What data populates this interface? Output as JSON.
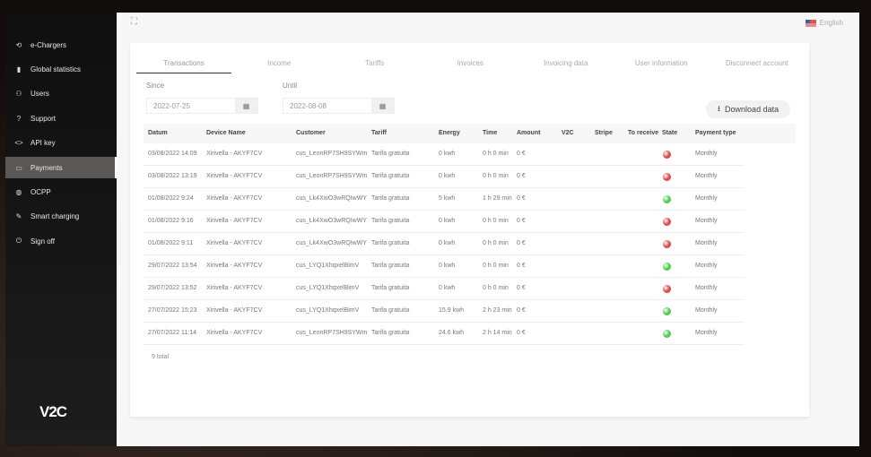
{
  "sidebar": {
    "items": [
      {
        "label": "e-Chargers",
        "icon": "charger-icon",
        "glyph": "⟲"
      },
      {
        "label": "Global statistics",
        "icon": "bar-chart-icon",
        "glyph": "▮"
      },
      {
        "label": "Users",
        "icon": "user-icon",
        "glyph": "⚇"
      },
      {
        "label": "Support",
        "icon": "help-icon",
        "glyph": "?"
      },
      {
        "label": "API key",
        "icon": "code-icon",
        "glyph": "<>"
      },
      {
        "label": "Payments",
        "icon": "wallet-icon",
        "glyph": "▭",
        "active": true
      },
      {
        "label": "OCPP",
        "icon": "globe-icon",
        "glyph": "◍"
      },
      {
        "label": "Smart charging",
        "icon": "pencil-icon",
        "glyph": "✎"
      },
      {
        "label": "Sign off",
        "icon": "power-icon",
        "glyph": "⏻"
      }
    ],
    "logo": "V2C"
  },
  "header": {
    "language": "English"
  },
  "tabs": [
    "Transactions",
    "Income",
    "Tariffs",
    "Invoices",
    "Invoicing data",
    "User information",
    "Disconnect account"
  ],
  "filters": {
    "since_label": "Since",
    "since_value": "2022-07-25",
    "until_label": "Until",
    "until_value": "2022-08-08"
  },
  "download_label": "Download data",
  "columns": [
    "Datum",
    "Device Name",
    "Customer",
    "Tariff",
    "Energy",
    "Time",
    "Amount",
    "V2C",
    "Stripe",
    "To receive",
    "State",
    "Payment type"
  ],
  "rows": [
    [
      "03/08/2022 14:09",
      "Xirivella - AKYF7CV",
      "cus_LeonRP7SH9SYWm",
      "Tarifa gratuita",
      "0 kwh",
      "0 h 0 min",
      "0 €",
      "",
      "",
      "",
      "red",
      "Monthly"
    ],
    [
      "03/08/2022 13:19",
      "Xirivella - AKYF7CV",
      "cus_LeonRP7SH9SYWm",
      "Tarifa gratuita",
      "0 kwh",
      "0 h 0 min",
      "0 €",
      "",
      "",
      "",
      "red",
      "Monthly"
    ],
    [
      "01/08/2022 9:24",
      "Xirivella - AKYF7CV",
      "cus_Lk4XwO3wRQIwWY",
      "Tarifa gratuita",
      "5 kwh",
      "1 h 29 min",
      "0 €",
      "",
      "",
      "",
      "green",
      "Monthly"
    ],
    [
      "01/08/2022 9:16",
      "Xirivella - AKYF7CV",
      "cus_Lk4XwO3wRQIwWY",
      "Tarifa gratuita",
      "0 kwh",
      "0 h 0 min",
      "0 €",
      "",
      "",
      "",
      "red",
      "Monthly"
    ],
    [
      "01/08/2022 9:11",
      "Xirivella - AKYF7CV",
      "cus_Lk4XwO3wRQIwWY",
      "Tarifa gratuita",
      "0 kwh",
      "0 h 0 min",
      "0 €",
      "",
      "",
      "",
      "red",
      "Monthly"
    ],
    [
      "29/07/2022 13:54",
      "Xirivella - AKYF7CV",
      "cus_LYQ1XhqxelBimV",
      "Tarifa gratuita",
      "0 kwh",
      "0 h 0 min",
      "0 €",
      "",
      "",
      "",
      "green",
      "Monthly"
    ],
    [
      "29/07/2022 13:52",
      "Xirivella - AKYF7CV",
      "cus_LYQ1XhqxelBimV",
      "Tarifa gratuita",
      "0 kwh",
      "0 h 0 min",
      "0 €",
      "",
      "",
      "",
      "red",
      "Monthly"
    ],
    [
      "27/07/2022 15:23",
      "Xirivella - AKYF7CV",
      "cus_LYQ1XhqxelBimV",
      "Tarifa gratuita",
      "15.9 kwh",
      "2 h 23 min",
      "0 €",
      "",
      "",
      "",
      "green",
      "Monthly"
    ],
    [
      "27/07/2022 11:14",
      "Xirivella - AKYF7CV",
      "cus_LeonRP7SH9SYWm",
      "Tarifa gratuita",
      "24.6 kwh",
      "2 h 14 min",
      "0 €",
      "",
      "",
      "",
      "green",
      "Monthly"
    ]
  ],
  "total": "9 total",
  "colors": {
    "red": "#e04848",
    "green": "#4cce4c"
  }
}
